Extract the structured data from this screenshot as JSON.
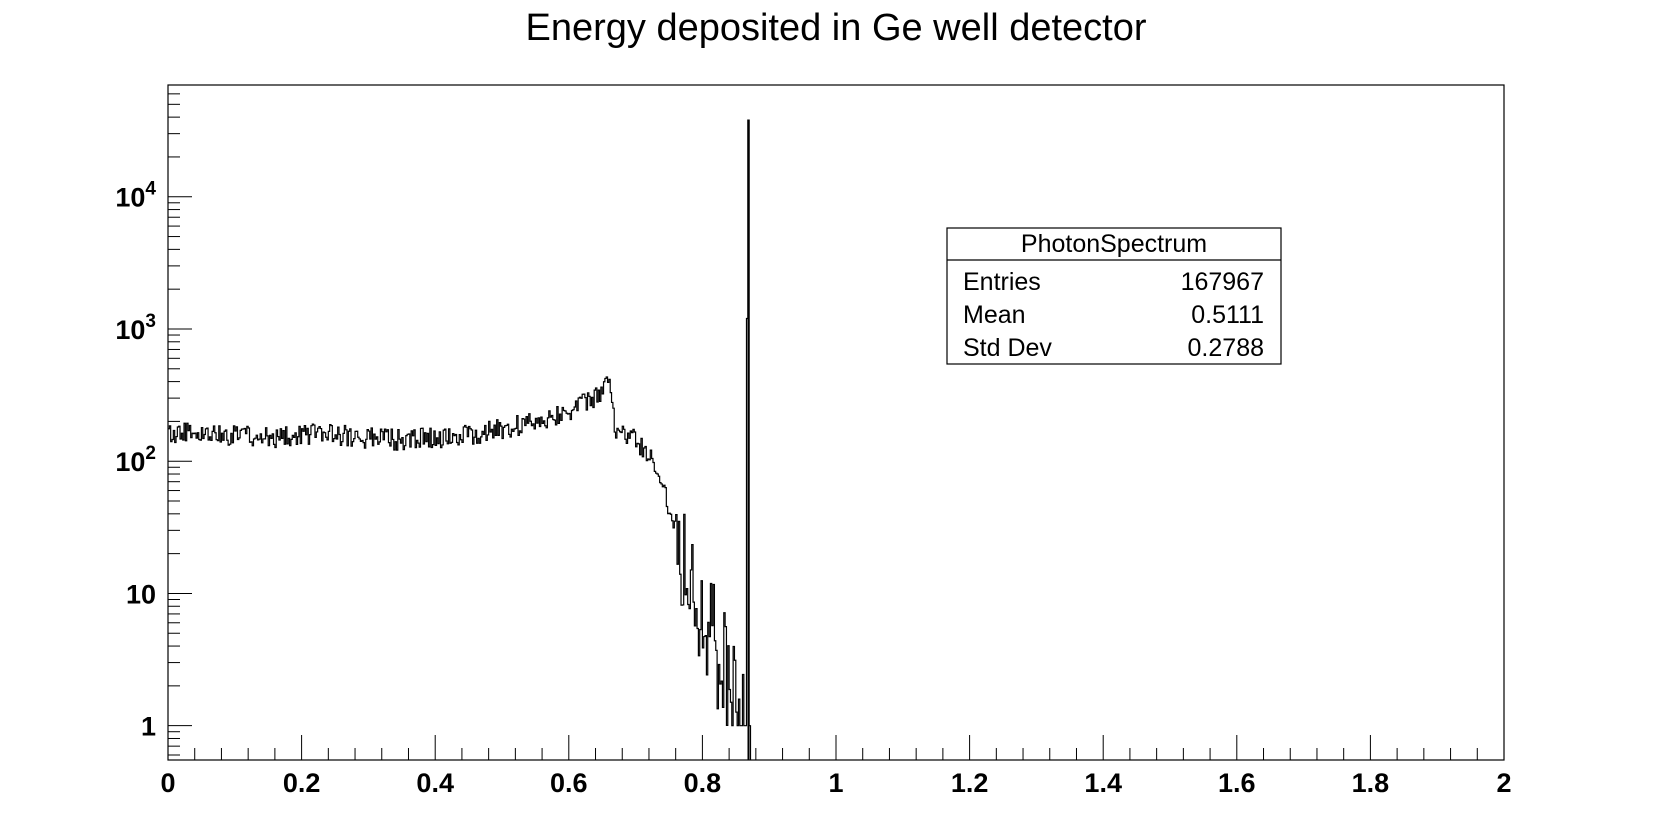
{
  "chart_data": {
    "type": "histogram",
    "title": "Energy deposited in Ge well detector",
    "xlabel": "",
    "ylabel": "",
    "xlim": [
      0,
      2
    ],
    "ylim": [
      0.55,
      70000
    ],
    "yscale": "log",
    "grid": false,
    "x_ticks": [
      "0",
      "0.2",
      "0.4",
      "0.6",
      "0.8",
      "1",
      "1.2",
      "1.4",
      "1.6",
      "1.8",
      "2"
    ],
    "y_ticks": [
      {
        "base": "1",
        "exp": ""
      },
      {
        "base": "10",
        "exp": ""
      },
      {
        "base": "10",
        "exp": "2"
      },
      {
        "base": "10",
        "exp": "3"
      },
      {
        "base": "10",
        "exp": "4"
      }
    ],
    "bin_width": 0.002,
    "profile": [
      {
        "x": 0.0,
        "y": 160
      },
      {
        "x": 0.05,
        "y": 165
      },
      {
        "x": 0.1,
        "y": 155
      },
      {
        "x": 0.15,
        "y": 150
      },
      {
        "x": 0.2,
        "y": 160
      },
      {
        "x": 0.25,
        "y": 158
      },
      {
        "x": 0.3,
        "y": 150
      },
      {
        "x": 0.35,
        "y": 145
      },
      {
        "x": 0.4,
        "y": 150
      },
      {
        "x": 0.45,
        "y": 158
      },
      {
        "x": 0.5,
        "y": 175
      },
      {
        "x": 0.55,
        "y": 200
      },
      {
        "x": 0.6,
        "y": 240
      },
      {
        "x": 0.64,
        "y": 300
      },
      {
        "x": 0.662,
        "y": 400
      },
      {
        "x": 0.67,
        "y": 170
      },
      {
        "x": 0.7,
        "y": 145
      },
      {
        "x": 0.72,
        "y": 110
      },
      {
        "x": 0.74,
        "y": 70
      },
      {
        "x": 0.76,
        "y": 30
      },
      {
        "x": 0.78,
        "y": 15
      },
      {
        "x": 0.8,
        "y": 8
      },
      {
        "x": 0.82,
        "y": 4
      },
      {
        "x": 0.84,
        "y": 2
      },
      {
        "x": 0.86,
        "y": 1.5
      }
    ],
    "noise_amplitude": 0.08,
    "noise_amplitude_tail": 0.45,
    "noise_tail_start": 0.76,
    "peak": {
      "x": 0.867,
      "y": 38000,
      "neighbor_y": 1200
    },
    "stats": {
      "name": "PhotonSpectrum",
      "rows": [
        {
          "label": "Entries",
          "value": "167967"
        },
        {
          "label": "Mean",
          "value": "0.5111"
        },
        {
          "label": "Std Dev",
          "value": "0.2788"
        }
      ]
    }
  }
}
